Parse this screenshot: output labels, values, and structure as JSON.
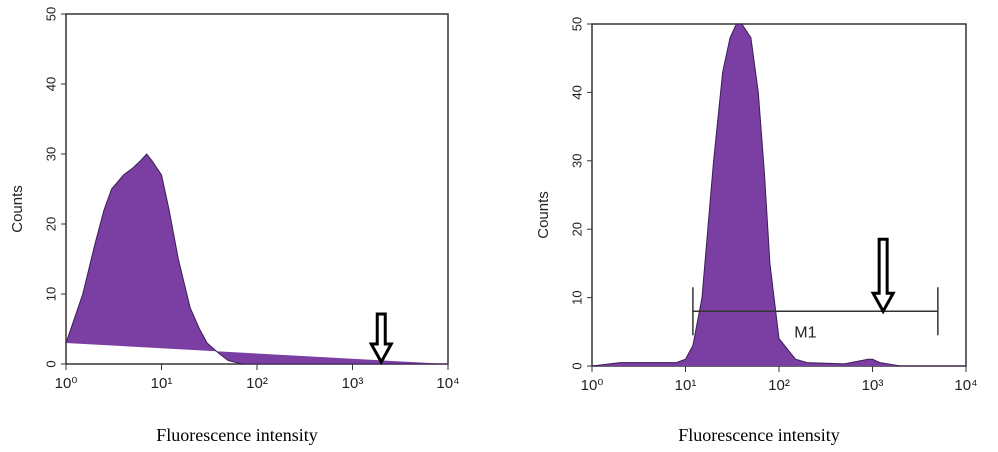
{
  "chart_data": [
    {
      "type": "area",
      "xscale": "log",
      "x_label": "Fluorescence intensity",
      "y_label": "Counts",
      "color": "#7b3fa3",
      "x": [
        1,
        1.5,
        2,
        2.5,
        3,
        4,
        5,
        6,
        7,
        8,
        10,
        12,
        15,
        20,
        25,
        30,
        40,
        50,
        70,
        100,
        1000,
        10000
      ],
      "values": [
        3,
        10,
        17,
        22,
        25,
        27,
        28,
        29,
        30,
        29,
        27,
        22,
        15,
        8,
        5,
        3,
        1.5,
        0.5,
        0,
        0,
        0,
        0
      ],
      "xlim": [
        1,
        10000
      ],
      "xticks": [
        {
          "value": 1,
          "label": "10⁰"
        },
        {
          "value": 10,
          "label": "10¹"
        },
        {
          "value": 100,
          "label": "10²"
        },
        {
          "value": 1000,
          "label": "10³"
        },
        {
          "value": 10000,
          "label": "10⁴"
        }
      ],
      "ylim": [
        0,
        50
      ],
      "yticks": [
        0,
        10,
        20,
        30,
        40,
        50
      ],
      "arrow_x": 2000
    },
    {
      "type": "area",
      "xscale": "log",
      "x_label": "Fluorescence intensity",
      "y_label": "Counts",
      "color": "#7b3fa3",
      "x": [
        1,
        2,
        3,
        5,
        8,
        10,
        12,
        15,
        20,
        25,
        30,
        35,
        40,
        50,
        60,
        70,
        80,
        100,
        150,
        200,
        500,
        900,
        1000,
        1200,
        2000,
        10000
      ],
      "values": [
        0,
        0.5,
        0.5,
        0.5,
        0.5,
        1,
        3,
        10,
        30,
        43,
        48,
        50,
        50,
        48,
        40,
        28,
        15,
        4,
        1,
        0.5,
        0.3,
        1,
        1,
        0.5,
        0,
        0
      ],
      "xlim": [
        1,
        10000
      ],
      "xticks": [
        {
          "value": 1,
          "label": "10⁰"
        },
        {
          "value": 10,
          "label": "10¹"
        },
        {
          "value": 100,
          "label": "10²"
        },
        {
          "value": 1000,
          "label": "10³"
        },
        {
          "value": 10000,
          "label": "10⁴"
        }
      ],
      "ylim": [
        0,
        50
      ],
      "yticks": [
        0,
        10,
        20,
        30,
        40,
        50
      ],
      "gate": {
        "label": "M1",
        "x": [
          12,
          5000
        ],
        "y": 8
      },
      "arrow_x": 1300
    }
  ]
}
